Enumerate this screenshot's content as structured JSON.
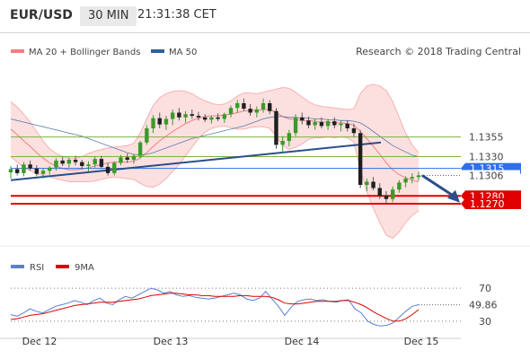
{
  "header": {
    "symbol": "EUR/USD",
    "timeframe": "30 MIN",
    "clock": "21:31:38 CET"
  },
  "watermark": "Research © 2018 Trading Central",
  "legend": {
    "main": [
      {
        "label": "MA 20 + Bollinger Bands",
        "color": "#f08080"
      },
      {
        "label": "MA 50",
        "color": "#2f5f9a"
      }
    ],
    "rsi": [
      {
        "label": "RSI",
        "color": "#5b7fd6"
      },
      {
        "label": "9MA",
        "color": "#dd0000"
      }
    ]
  },
  "chart_data": [
    {
      "type": "candlestick",
      "title": "",
      "x_labels": [
        "Dec 12",
        "Dec 13",
        "Dec 14",
        "Dec 15"
      ],
      "y_range": [
        1.123,
        1.143
      ],
      "last_price": "1.1306",
      "levels": [
        {
          "value": 1.1355,
          "label": "1.1355",
          "color": "#7cb342",
          "kind": "resistance"
        },
        {
          "value": 1.133,
          "label": "1.1330",
          "color": "#7cb342",
          "kind": "resistance"
        },
        {
          "value": 1.1315,
          "label": "1.1315",
          "color": "#2f6fe8",
          "kind": "pivot"
        },
        {
          "value": 1.128,
          "label": "1.1280",
          "color": "#e00000",
          "kind": "support"
        },
        {
          "value": 1.127,
          "label": "1.1270",
          "color": "#e00000",
          "kind": "support"
        }
      ],
      "trendline": {
        "from": [
          "Dec 12",
          1.13
        ],
        "to": [
          "Dec 14",
          1.1348
        ]
      },
      "forecast_arrow": {
        "from": 1.1306,
        "to": 1.1276,
        "color": "#2a4f8a"
      },
      "ohlc": [
        [
          1.131,
          1.1318,
          1.1302,
          1.1314
        ],
        [
          1.1314,
          1.132,
          1.1306,
          1.1309
        ],
        [
          1.1309,
          1.1323,
          1.1305,
          1.132
        ],
        [
          1.132,
          1.1325,
          1.1312,
          1.1315
        ],
        [
          1.1315,
          1.1319,
          1.1305,
          1.1308
        ],
        [
          1.1308,
          1.1315,
          1.1302,
          1.1312
        ],
        [
          1.1312,
          1.1318,
          1.1307,
          1.1316
        ],
        [
          1.1316,
          1.1328,
          1.1312,
          1.1325
        ],
        [
          1.1325,
          1.133,
          1.1318,
          1.1321
        ],
        [
          1.1321,
          1.1329,
          1.1316,
          1.1326
        ],
        [
          1.1326,
          1.1331,
          1.1319,
          1.1323
        ],
        [
          1.1323,
          1.1326,
          1.1314,
          1.1318
        ],
        [
          1.1318,
          1.1324,
          1.1311,
          1.132
        ],
        [
          1.132,
          1.133,
          1.1316,
          1.1327
        ],
        [
          1.1327,
          1.1331,
          1.1315,
          1.1317
        ],
        [
          1.1317,
          1.1322,
          1.1306,
          1.1309
        ],
        [
          1.1309,
          1.1324,
          1.1306,
          1.1322
        ],
        [
          1.1322,
          1.1332,
          1.1319,
          1.1329
        ],
        [
          1.1329,
          1.1334,
          1.1322,
          1.1326
        ],
        [
          1.1326,
          1.1333,
          1.1321,
          1.1331
        ],
        [
          1.1331,
          1.135,
          1.1328,
          1.1348
        ],
        [
          1.1348,
          1.137,
          1.1345,
          1.1366
        ],
        [
          1.1366,
          1.1383,
          1.136,
          1.1379
        ],
        [
          1.1379,
          1.1386,
          1.1366,
          1.1371
        ],
        [
          1.1371,
          1.1382,
          1.1364,
          1.1378
        ],
        [
          1.1378,
          1.139,
          1.137,
          1.1386
        ],
        [
          1.1386,
          1.1392,
          1.1376,
          1.138
        ],
        [
          1.138,
          1.1388,
          1.1373,
          1.1384
        ],
        [
          1.1384,
          1.139,
          1.1378,
          1.1382
        ],
        [
          1.1382,
          1.1387,
          1.1376,
          1.138
        ],
        [
          1.138,
          1.1384,
          1.1374,
          1.1377
        ],
        [
          1.1377,
          1.1382,
          1.1372,
          1.138
        ],
        [
          1.138,
          1.1385,
          1.1375,
          1.1378
        ],
        [
          1.1378,
          1.1386,
          1.1373,
          1.1384
        ],
        [
          1.1384,
          1.1395,
          1.138,
          1.1392
        ],
        [
          1.1392,
          1.1402,
          1.1386,
          1.1398
        ],
        [
          1.1398,
          1.1404,
          1.1388,
          1.1391
        ],
        [
          1.1391,
          1.1397,
          1.1382,
          1.1386
        ],
        [
          1.1386,
          1.1394,
          1.138,
          1.139
        ],
        [
          1.139,
          1.1404,
          1.1386,
          1.1398
        ],
        [
          1.1398,
          1.1402,
          1.1384,
          1.1388
        ],
        [
          1.1388,
          1.1392,
          1.134,
          1.1345
        ],
        [
          1.1345,
          1.1356,
          1.1335,
          1.135
        ],
        [
          1.135,
          1.1364,
          1.1343,
          1.136
        ],
        [
          1.136,
          1.1384,
          1.1356,
          1.138
        ],
        [
          1.138,
          1.1386,
          1.1371,
          1.1376
        ],
        [
          1.1376,
          1.1381,
          1.1366,
          1.137
        ],
        [
          1.137,
          1.1378,
          1.1364,
          1.1374
        ],
        [
          1.1374,
          1.138,
          1.1366,
          1.1369
        ],
        [
          1.1369,
          1.1378,
          1.1364,
          1.1375
        ],
        [
          1.1375,
          1.138,
          1.1366,
          1.137
        ],
        [
          1.137,
          1.1376,
          1.1362,
          1.1372
        ],
        [
          1.1372,
          1.1376,
          1.1362,
          1.1366
        ],
        [
          1.1366,
          1.1372,
          1.1355,
          1.136
        ],
        [
          1.136,
          1.1364,
          1.129,
          1.1294
        ],
        [
          1.1294,
          1.1302,
          1.1286,
          1.1298
        ],
        [
          1.1298,
          1.1304,
          1.1287,
          1.129
        ],
        [
          1.129,
          1.1296,
          1.1276,
          1.128
        ],
        [
          1.128,
          1.1286,
          1.127,
          1.1276
        ],
        [
          1.1276,
          1.1292,
          1.1272,
          1.1288
        ],
        [
          1.1288,
          1.13,
          1.1284,
          1.1297
        ],
        [
          1.1297,
          1.1305,
          1.1291,
          1.1302
        ],
        [
          1.1302,
          1.1309,
          1.1296,
          1.1304
        ],
        [
          1.1304,
          1.1311,
          1.1299,
          1.1306
        ]
      ],
      "ma20": [
        1.1365,
        1.1358,
        1.135,
        1.1343,
        1.1335,
        1.1328,
        1.1322,
        1.1318,
        1.1315,
        1.1313,
        1.1313,
        1.1314,
        1.1316,
        1.1318,
        1.132,
        1.1322,
        1.1323,
        1.1323,
        1.1323,
        1.1324,
        1.1328,
        1.1335,
        1.1343,
        1.135,
        1.1356,
        1.1362,
        1.1367,
        1.1372,
        1.1376,
        1.1379,
        1.1381,
        1.1382,
        1.1382,
        1.1383,
        1.1384,
        1.1386,
        1.1388,
        1.1389,
        1.1389,
        1.139,
        1.139,
        1.1386,
        1.1381,
        1.1378,
        1.1377,
        1.1376,
        1.1376,
        1.1375,
        1.1374,
        1.1374,
        1.1373,
        1.1373,
        1.1372,
        1.137,
        1.1362,
        1.1353,
        1.1343,
        1.1333,
        1.1322,
        1.1313,
        1.1307,
        1.1303,
        1.13,
        1.1298
      ],
      "bb_upper": [
        1.14,
        1.1393,
        1.1384,
        1.1374,
        1.1362,
        1.135,
        1.134,
        1.1334,
        1.133,
        1.1328,
        1.1328,
        1.133,
        1.1334,
        1.1337,
        1.1339,
        1.1341,
        1.1342,
        1.1343,
        1.1344,
        1.1347,
        1.136,
        1.1378,
        1.1395,
        1.1405,
        1.141,
        1.1413,
        1.1414,
        1.1413,
        1.141,
        1.1405,
        1.1401,
        1.1398,
        1.1396,
        1.1397,
        1.1401,
        1.1407,
        1.1411,
        1.1411,
        1.141,
        1.1412,
        1.1414,
        1.1416,
        1.1418,
        1.1417,
        1.1412,
        1.1406,
        1.14,
        1.1396,
        1.1394,
        1.1393,
        1.1392,
        1.1391,
        1.139,
        1.1391,
        1.141,
        1.142,
        1.1422,
        1.142,
        1.1414,
        1.14,
        1.138,
        1.136,
        1.1345,
        1.1335
      ],
      "bb_lower": [
        1.133,
        1.1323,
        1.1316,
        1.1312,
        1.1308,
        1.1306,
        1.1304,
        1.1302,
        1.13,
        1.1298,
        1.1298,
        1.1298,
        1.1298,
        1.1299,
        1.1301,
        1.1303,
        1.1304,
        1.1303,
        1.1302,
        1.1301,
        1.1296,
        1.1292,
        1.1291,
        1.1295,
        1.1302,
        1.1311,
        1.132,
        1.1331,
        1.1342,
        1.1353,
        1.1361,
        1.1366,
        1.1368,
        1.1369,
        1.1367,
        1.1365,
        1.1365,
        1.1367,
        1.1368,
        1.1368,
        1.1366,
        1.1356,
        1.1344,
        1.1339,
        1.1342,
        1.1346,
        1.1352,
        1.1354,
        1.1354,
        1.1355,
        1.1354,
        1.1355,
        1.1354,
        1.1349,
        1.1314,
        1.1286,
        1.1264,
        1.1246,
        1.123,
        1.1226,
        1.1234,
        1.1246,
        1.1255,
        1.1261
      ],
      "ma50": [
        1.1378,
        1.1376,
        1.1374,
        1.1372,
        1.137,
        1.1368,
        1.1366,
        1.1364,
        1.1362,
        1.136,
        1.1358,
        1.1356,
        1.1353,
        1.135,
        1.1347,
        1.1344,
        1.1341,
        1.1338,
        1.1335,
        1.1333,
        1.1332,
        1.1333,
        1.1335,
        1.1338,
        1.1341,
        1.1344,
        1.1347,
        1.135,
        1.1353,
        1.1355,
        1.1357,
        1.1359,
        1.1361,
        1.1363,
        1.1365,
        1.1367,
        1.1369,
        1.1372,
        1.1375,
        1.1378,
        1.138,
        1.1381,
        1.1381,
        1.138,
        1.138,
        1.1379,
        1.1379,
        1.1378,
        1.1378,
        1.1377,
        1.1377,
        1.1376,
        1.1376,
        1.1375,
        1.1373,
        1.1368,
        1.1362,
        1.1356,
        1.135,
        1.1344,
        1.134,
        1.1336,
        1.1332,
        1.133
      ]
    },
    {
      "type": "line",
      "title": "",
      "y_range": [
        20,
        80
      ],
      "ticks": [
        {
          "value": 70,
          "label": "70"
        },
        {
          "value": 30,
          "label": "30"
        }
      ],
      "current": {
        "value": 49.86,
        "label": "49.86",
        "color": "#5b7fd6"
      },
      "series": [
        {
          "name": "RSI",
          "color": "#5b7fd6",
          "values": [
            38,
            36,
            40,
            45,
            42,
            40,
            44,
            48,
            50,
            52,
            55,
            53,
            50,
            55,
            58,
            52,
            50,
            56,
            60,
            58,
            62,
            66,
            70,
            68,
            64,
            66,
            62,
            60,
            61,
            59,
            58,
            57,
            58,
            60,
            62,
            64,
            62,
            57,
            55,
            58,
            66,
            57,
            48,
            37,
            47,
            54,
            56,
            57,
            55,
            56,
            54,
            53,
            55,
            56,
            45,
            40,
            30,
            26,
            24,
            25,
            28,
            35,
            42,
            48,
            50
          ]
        },
        {
          "name": "9MA",
          "color": "#dd0000",
          "values": [
            32,
            33,
            35,
            37,
            38,
            39,
            41,
            43,
            45,
            47,
            49,
            50,
            51,
            52,
            53,
            53,
            53,
            54,
            55,
            56,
            57,
            59,
            61,
            62,
            63,
            64,
            64,
            63,
            62,
            62,
            61,
            61,
            60,
            60,
            60,
            60,
            61,
            61,
            60,
            60,
            60,
            59,
            56,
            52,
            51,
            51,
            52,
            53,
            54,
            54,
            54,
            54,
            55,
            55,
            53,
            50,
            46,
            41,
            37,
            33,
            30,
            30,
            33,
            38,
            44
          ]
        }
      ]
    }
  ],
  "_end": true
}
